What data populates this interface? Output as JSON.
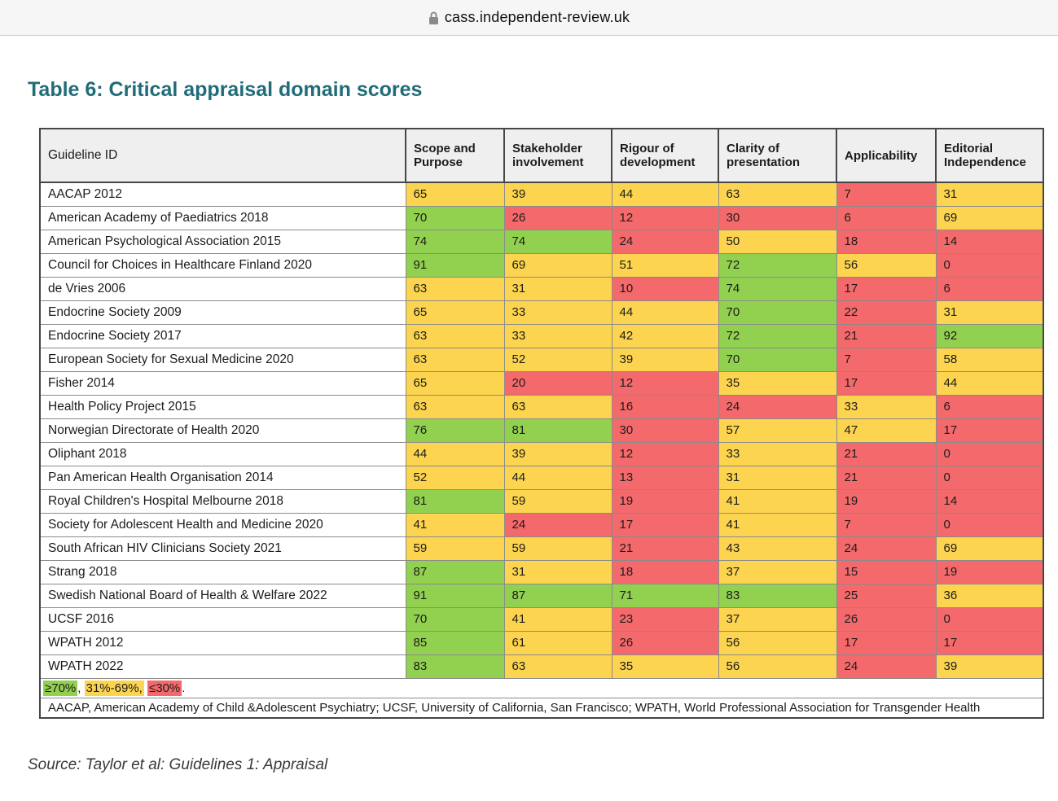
{
  "browser": {
    "url": "cass.independent-review.uk"
  },
  "page_title": "Table 6: Critical appraisal domain scores",
  "colors": {
    "green": "#92d050",
    "yellow": "#fcd44f",
    "red": "#f4696b",
    "title_teal": "#206c78",
    "header_bg": "#efefef"
  },
  "table": {
    "columns": [
      "Guideline ID",
      "Scope and Purpose",
      "Stakeholder involvement",
      "Rigour of development",
      "Clarity of presentation",
      "Applicability",
      "Editorial Independence"
    ],
    "thresholds": {
      "green_min": 70,
      "yellow_min": 31
    },
    "rows": [
      {
        "guideline": "AACAP 2012",
        "scores": [
          65,
          39,
          44,
          63,
          7,
          31
        ]
      },
      {
        "guideline": "American Academy of Paediatrics 2018",
        "scores": [
          70,
          26,
          12,
          30,
          6,
          69
        ]
      },
      {
        "guideline": "American Psychological Association 2015",
        "scores": [
          74,
          74,
          24,
          50,
          18,
          14
        ]
      },
      {
        "guideline": "Council for Choices in Healthcare Finland 2020",
        "scores": [
          91,
          69,
          51,
          72,
          56,
          0
        ]
      },
      {
        "guideline": "de Vries 2006",
        "scores": [
          63,
          31,
          10,
          74,
          17,
          6
        ]
      },
      {
        "guideline": "Endocrine Society 2009",
        "scores": [
          65,
          33,
          44,
          70,
          22,
          31
        ]
      },
      {
        "guideline": "Endocrine Society 2017",
        "scores": [
          63,
          33,
          42,
          72,
          21,
          92
        ]
      },
      {
        "guideline": "European Society for Sexual Medicine 2020",
        "scores": [
          63,
          52,
          39,
          70,
          7,
          58
        ]
      },
      {
        "guideline": "Fisher 2014",
        "scores": [
          65,
          20,
          12,
          35,
          17,
          44
        ]
      },
      {
        "guideline": "Health Policy Project 2015",
        "scores": [
          63,
          63,
          16,
          24,
          33,
          6
        ]
      },
      {
        "guideline": "Norwegian Directorate of Health 2020",
        "scores": [
          76,
          81,
          30,
          57,
          47,
          17
        ]
      },
      {
        "guideline": "Oliphant 2018",
        "scores": [
          44,
          39,
          12,
          33,
          21,
          0
        ]
      },
      {
        "guideline": "Pan American Health Organisation 2014",
        "scores": [
          52,
          44,
          13,
          31,
          21,
          0
        ]
      },
      {
        "guideline": "Royal Children's Hospital Melbourne 2018",
        "scores": [
          81,
          59,
          19,
          41,
          19,
          14
        ]
      },
      {
        "guideline": "Society for Adolescent Health and Medicine 2020",
        "scores": [
          41,
          24,
          17,
          41,
          7,
          0
        ]
      },
      {
        "guideline": "South African HIV Clinicians Society 2021",
        "scores": [
          59,
          59,
          21,
          43,
          24,
          69
        ]
      },
      {
        "guideline": "Strang 2018",
        "scores": [
          87,
          31,
          18,
          37,
          15,
          19
        ]
      },
      {
        "guideline": "Swedish National Board of Health & Welfare 2022",
        "scores": [
          91,
          87,
          71,
          83,
          25,
          36
        ]
      },
      {
        "guideline": "UCSF 2016",
        "scores": [
          70,
          41,
          23,
          37,
          26,
          0
        ]
      },
      {
        "guideline": "WPATH 2012",
        "scores": [
          85,
          61,
          26,
          56,
          17,
          17
        ]
      },
      {
        "guideline": "WPATH 2022",
        "scores": [
          83,
          63,
          35,
          56,
          24,
          39
        ]
      }
    ],
    "legend": [
      {
        "text": "≥70%",
        "color": "green",
        "after": ", "
      },
      {
        "text": "31%-69%,",
        "color": "yellow",
        "after": " "
      },
      {
        "text": "≤30%",
        "color": "red",
        "after": "."
      }
    ],
    "footnote": "AACAP, American Academy of Child &Adolescent Psychiatry; UCSF, University of California, San Francisco; WPATH, World Professional Association for Transgender Health"
  },
  "source": "Source: Taylor et al: Guidelines 1: Appraisal"
}
